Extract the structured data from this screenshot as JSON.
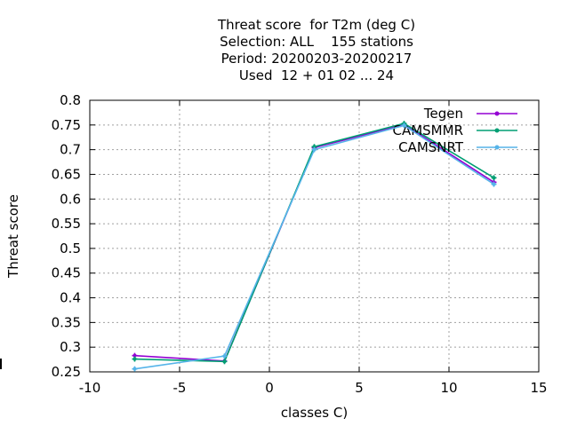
{
  "title_lines": [
    "Threat score  for T2m (deg C)",
    "Selection: ALL    155 stations",
    "Period: 20200203-20200217",
    "Used  12 + 01 02 ... 24"
  ],
  "chart_data": {
    "type": "line",
    "xlabel": "classes C)",
    "ylabel": "Threat score",
    "xlim": [
      -10,
      15
    ],
    "ylim": [
      0.25,
      0.8
    ],
    "xticks": [
      -10,
      -5,
      0,
      5,
      10,
      15
    ],
    "yticks": [
      0.25,
      0.3,
      0.35,
      0.4,
      0.45,
      0.5,
      0.55,
      0.6,
      0.65,
      0.7,
      0.75,
      0.8
    ],
    "xtick_labels": [
      "-10",
      "-5",
      "0",
      "5",
      "10",
      "15"
    ],
    "ytick_labels": [
      "0.25",
      "0.3",
      "0.35",
      "0.4",
      "0.45",
      "0.5",
      "0.55",
      "0.6",
      "0.65",
      "0.7",
      "0.75",
      "0.8"
    ],
    "grid": true,
    "legend_position": "top-right",
    "series": [
      {
        "name": "Tegen",
        "color": "#9400d3",
        "x": [
          -7.5,
          -2.5,
          2.5,
          7.5,
          12.5
        ],
        "y": [
          0.283,
          0.272,
          0.704,
          0.751,
          0.634
        ]
      },
      {
        "name": "CAMSMMR",
        "color": "#009e73",
        "x": [
          -7.5,
          -2.5,
          2.5,
          7.5,
          12.5
        ],
        "y": [
          0.276,
          0.271,
          0.706,
          0.753,
          0.643
        ]
      },
      {
        "name": "CAMSNRT",
        "color": "#56b4e9",
        "x": [
          -7.5,
          -2.5,
          2.5,
          7.5,
          12.5
        ],
        "y": [
          0.256,
          0.282,
          0.7,
          0.749,
          0.63
        ]
      }
    ]
  }
}
